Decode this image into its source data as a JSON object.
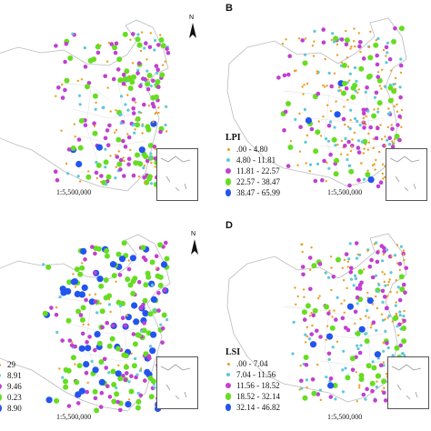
{
  "panels": [
    {
      "id": "A",
      "label": "",
      "scale_text": "1:5,500,000",
      "legend": null
    },
    {
      "id": "B",
      "label": "B",
      "scale_text": "1:5,500,000",
      "legend": {
        "title": "LPI",
        "items": [
          ".00 - 4.80",
          "4.80 - 11.81",
          "11.81 - 22.57",
          "22.57 - 38.47",
          "38.47 - 65.99"
        ]
      }
    },
    {
      "id": "C",
      "label": "",
      "scale_text": "1:5,500,000",
      "legend": {
        "title": "",
        "items": [
          "29",
          "8.91",
          "9.46",
          "0.23",
          "8.90"
        ]
      }
    },
    {
      "id": "D",
      "label": "D",
      "scale_text": "1:5,500,000",
      "legend": {
        "title": "LSI",
        "items": [
          ".00 - 7.04",
          "7.04 - 11.56",
          "11.56 - 18.52",
          "18.52 - 32.14",
          "32.14 - 46.82"
        ]
      }
    }
  ],
  "north_label": "N",
  "class_colors": [
    "#e8a020",
    "#5ec8d8",
    "#c040d0",
    "#66dd22",
    "#2255ee"
  ]
}
